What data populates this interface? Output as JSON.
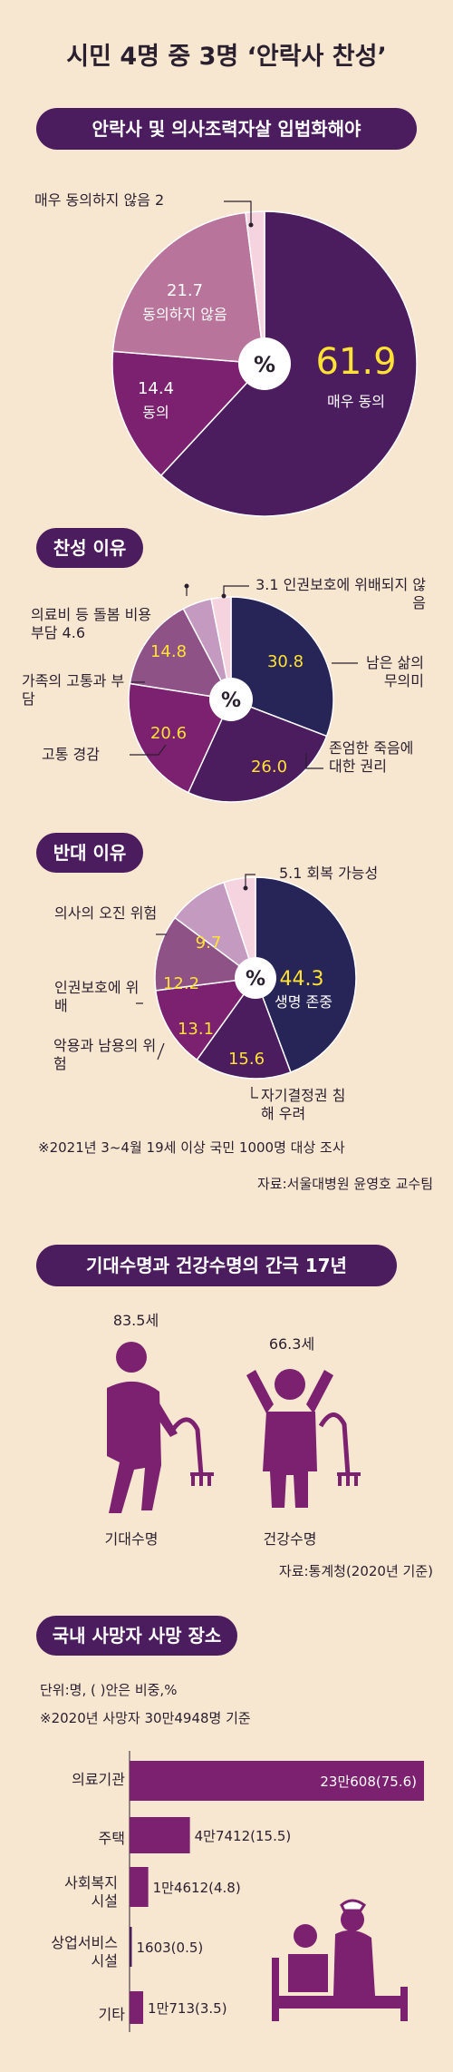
{
  "title": "시민 4명 중 3명 ‘안락사 찬성’",
  "colors": {
    "navy": "#272457",
    "purple_dark": "#4b1c5e",
    "purple": "#7b2170",
    "mauve": "#b9749b",
    "pink": "#f5d3df",
    "medium": "#8e5287",
    "light": "#c49ac0",
    "bar": "#7b2170",
    "highlight": "#ffe233",
    "bg": "#f7e7d1"
  },
  "center_symbol": "%",
  "chart_data": [
    {
      "type": "pie",
      "title": "안락사 및 의사조력자살 입법화해야",
      "slices": [
        {
          "label": "매우 동의",
          "value": 61.9,
          "value_text": "61.9"
        },
        {
          "label": "동의",
          "value": 14.4,
          "value_text": "14.4"
        },
        {
          "label": "동의하지 않음",
          "value": 21.7,
          "value_text": "21.7"
        },
        {
          "label": "매우 동의하지 않음",
          "value": 2,
          "value_text": "2"
        }
      ]
    },
    {
      "type": "pie",
      "title": "찬성 이유",
      "slices": [
        {
          "label": "남은 삶의 무의미",
          "value": 30.8,
          "value_text": "30.8"
        },
        {
          "label": "존엄한 죽음에 대한 권리",
          "value": 26.0,
          "value_text": "26.0"
        },
        {
          "label": "고통 경감",
          "value": 20.6,
          "value_text": "20.6"
        },
        {
          "label": "가족의 고통과 부담",
          "value": 14.8,
          "value_text": "14.8"
        },
        {
          "label": "의료비 등 돌봄 비용 부담",
          "value": 4.6,
          "value_text": "4.6"
        },
        {
          "label": "인권보호에 위배되지 않음",
          "value": 3.1,
          "value_text": "3.1"
        }
      ]
    },
    {
      "type": "pie",
      "title": "반대 이유",
      "slices": [
        {
          "label": "생명 존중",
          "value": 44.3,
          "value_text": "44.3"
        },
        {
          "label": "자기결정권 침해 우려",
          "value": 15.6,
          "value_text": "15.6"
        },
        {
          "label": "악용과 남용의 위험",
          "value": 13.1,
          "value_text": "13.1"
        },
        {
          "label": "인권보호에 위배",
          "value": 12.2,
          "value_text": "12.2"
        },
        {
          "label": "의사의 오진 위험",
          "value": 9.7,
          "value_text": "9.7"
        },
        {
          "label": "회복 가능성",
          "value": 5.1,
          "value_text": "5.1"
        }
      ]
    },
    {
      "type": "bar",
      "title": "국내 사망자 사망 장소",
      "unit_note": "단위:명, ( )안은 비중,%",
      "basis_note": "※2020년 사망자 30만4948명 기준",
      "categories": [
        "의료기관",
        "주택",
        "사회복지 시설",
        "상업서비스 시설",
        "기타"
      ],
      "values": [
        75.6,
        15.5,
        4.8,
        0.5,
        3.5
      ],
      "value_labels": [
        "23만608(75.6)",
        "4만7412(15.5)",
        "1만4612(4.8)",
        "1603(0.5)",
        "1만713(3.5)"
      ]
    }
  ],
  "survey_note": "※2021년 3~4월 19세 이상 국민 1000명 대상 조사",
  "source1": "자료:서울대병원 윤영호 교수팀",
  "life": {
    "title": "기대수명과 건강수명의 간극 17년",
    "life_value": "83.5세",
    "life_label": "기대수명",
    "health_value": "66.3세",
    "health_label": "건강수명",
    "source": "자료:통계청(2020년 기준)"
  }
}
